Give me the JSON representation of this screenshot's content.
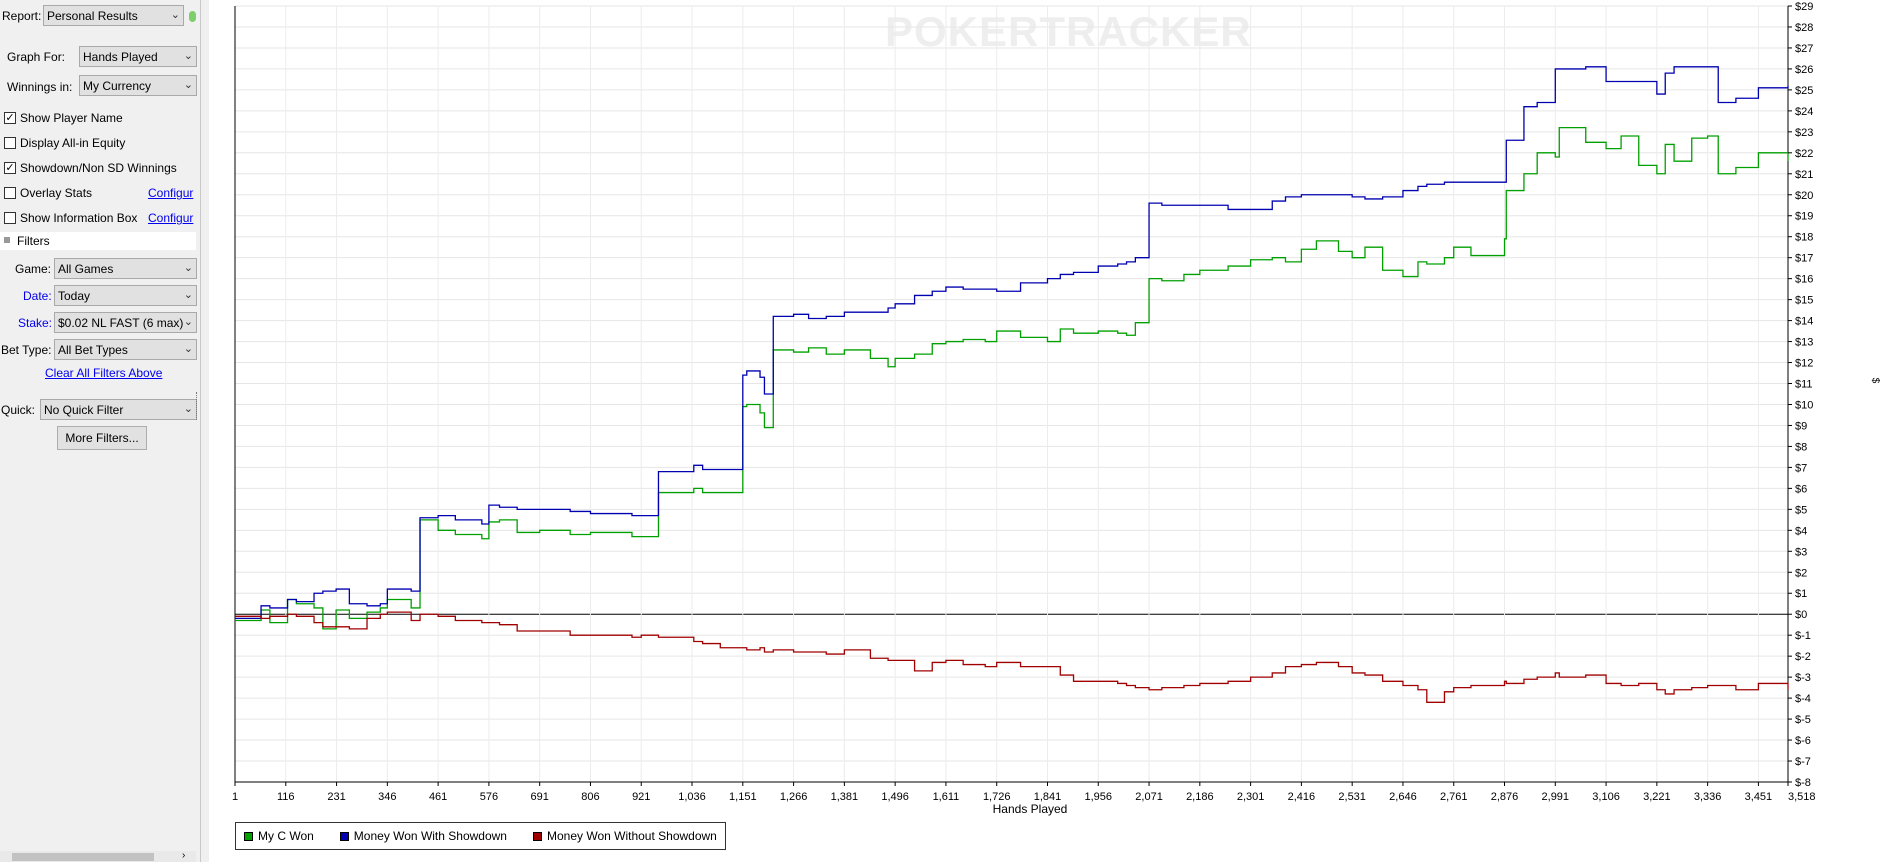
{
  "sidebar": {
    "report_label": "Report:",
    "report_value": "Personal Results",
    "graph_for_label": "Graph For:",
    "graph_for_value": "Hands Played",
    "winnings_label": "Winnings in:",
    "winnings_value": "My Currency",
    "checkboxes": [
      {
        "label": "Show Player Name",
        "checked": true
      },
      {
        "label": "Display All-in Equity",
        "checked": false
      },
      {
        "label": "Showdown/Non SD Winnings",
        "checked": true
      },
      {
        "label": "Overlay Stats",
        "checked": false
      },
      {
        "label": "Show Information Box",
        "checked": false
      }
    ],
    "configure_link": "Configur",
    "filters_header": "Filters",
    "game_label": "Game:",
    "game_value": "All Games",
    "date_label": "Date:",
    "date_value": "Today",
    "stake_label": "Stake:",
    "stake_value": "$0.02 NL FAST (6 max)",
    "bet_type_label": "Bet Type:",
    "bet_type_value": "All Bet Types",
    "clear_filters_link": "Clear All Filters Above",
    "quick_label": "Quick:",
    "quick_value": "No Quick Filter",
    "more_filters_button": "More Filters..."
  },
  "watermark": "POKERTRACKER",
  "axis_side_label": "$",
  "colors": {
    "green": "#00a000",
    "blue": "#0000b0",
    "red": "#a00000"
  },
  "chart_data": {
    "type": "line",
    "xlabel": "Hands Played",
    "ylabel": "$",
    "x_ticks": [
      "1",
      "116",
      "231",
      "346",
      "461",
      "576",
      "691",
      "806",
      "921",
      "1,036",
      "1,151",
      "1,266",
      "1,381",
      "1,496",
      "1,611",
      "1,726",
      "1,841",
      "1,956",
      "2,071",
      "2,186",
      "2,301",
      "2,416",
      "2,531",
      "2,646",
      "2,761",
      "2,876",
      "2,991",
      "3,106",
      "3,221",
      "3,336",
      "3,451",
      "3,518"
    ],
    "y_ticks": [
      "$29",
      "$28",
      "$27",
      "$26",
      "$25",
      "$24",
      "$23",
      "$22",
      "$21",
      "$20",
      "$19",
      "$18",
      "$17",
      "$16",
      "$15",
      "$14",
      "$13",
      "$12",
      "$11",
      "$10",
      "$9",
      "$8",
      "$7",
      "$6",
      "$5",
      "$4",
      "$3",
      "$2",
      "$1",
      "$0",
      "$-1",
      "$-2",
      "$-3",
      "$-4",
      "$-5",
      "$-6",
      "$-7",
      "$-8"
    ],
    "xlim": [
      1,
      3518
    ],
    "ylim": [
      -8,
      29
    ],
    "grid": true,
    "legend_position": "bottom-left",
    "series": [
      {
        "name": "My C Won",
        "color": "#00a000",
        "x": [
          1,
          60,
          80,
          120,
          140,
          180,
          200,
          230,
          260,
          300,
          330,
          346,
          400,
          420,
          461,
          500,
          560,
          576,
          600,
          640,
          691,
          760,
          806,
          900,
          921,
          960,
          1040,
          1060,
          1100,
          1151,
          1160,
          1190,
          1200,
          1220,
          1266,
          1300,
          1340,
          1381,
          1440,
          1480,
          1496,
          1540,
          1580,
          1611,
          1650,
          1700,
          1726,
          1780,
          1841,
          1870,
          1900,
          1956,
          2000,
          2020,
          2040,
          2071,
          2100,
          2150,
          2186,
          2250,
          2301,
          2350,
          2380,
          2416,
          2450,
          2500,
          2531,
          2560,
          2600,
          2646,
          2680,
          2700,
          2740,
          2761,
          2800,
          2876,
          2880,
          2920,
          2950,
          2991,
          3000,
          3060,
          3106,
          3140,
          3180,
          3221,
          3240,
          3260,
          3300,
          3336,
          3360,
          3400,
          3451,
          3518
        ],
        "y": [
          -0.3,
          0.2,
          -0.4,
          0.7,
          0.5,
          0.3,
          -0.7,
          0.2,
          -0.2,
          0.1,
          0.3,
          0.7,
          0.3,
          4.5,
          4.0,
          3.8,
          3.6,
          4.4,
          4.5,
          3.9,
          4.0,
          3.8,
          3.9,
          3.7,
          3.7,
          5.8,
          6.0,
          5.8,
          5.8,
          9.9,
          10.0,
          9.6,
          8.9,
          12.6,
          12.5,
          12.7,
          12.4,
          12.6,
          12.2,
          11.8,
          12.2,
          12.4,
          12.9,
          13.0,
          13.1,
          13.0,
          13.5,
          13.2,
          13.0,
          13.6,
          13.4,
          13.5,
          13.4,
          13.3,
          13.9,
          16.0,
          15.9,
          16.2,
          16.4,
          16.6,
          16.9,
          17.0,
          16.8,
          17.4,
          17.8,
          17.3,
          17.0,
          17.5,
          16.4,
          16.1,
          16.8,
          16.7,
          17.0,
          17.5,
          17.1,
          17.9,
          20.2,
          21.0,
          22.0,
          21.8,
          23.2,
          22.5,
          22.2,
          22.8,
          21.4,
          21.0,
          22.4,
          21.6,
          22.7,
          22.8,
          21.0,
          21.3,
          22.0,
          21.6
        ],
        "label": "My C Won"
      },
      {
        "name": "Money Won With Showdown",
        "color": "#0000b0",
        "x": [
          1,
          60,
          80,
          120,
          140,
          180,
          200,
          230,
          260,
          300,
          330,
          346,
          400,
          420,
          461,
          500,
          560,
          576,
          600,
          640,
          691,
          760,
          806,
          900,
          921,
          960,
          1040,
          1060,
          1100,
          1151,
          1160,
          1190,
          1200,
          1220,
          1266,
          1300,
          1340,
          1381,
          1440,
          1480,
          1496,
          1540,
          1580,
          1611,
          1650,
          1700,
          1726,
          1780,
          1841,
          1870,
          1900,
          1956,
          2000,
          2020,
          2040,
          2071,
          2100,
          2150,
          2186,
          2250,
          2301,
          2350,
          2380,
          2416,
          2450,
          2500,
          2531,
          2560,
          2600,
          2646,
          2680,
          2700,
          2740,
          2761,
          2800,
          2876,
          2880,
          2920,
          2950,
          2991,
          3000,
          3060,
          3106,
          3140,
          3180,
          3221,
          3240,
          3260,
          3300,
          3336,
          3360,
          3400,
          3451,
          3518
        ],
        "y": [
          -0.2,
          0.4,
          0.3,
          0.7,
          0.6,
          1.0,
          1.1,
          1.2,
          0.5,
          0.4,
          0.5,
          1.2,
          1.1,
          4.6,
          4.7,
          4.5,
          4.3,
          5.2,
          5.1,
          5.0,
          5.0,
          4.9,
          4.8,
          4.7,
          4.7,
          6.8,
          7.1,
          6.9,
          6.9,
          11.4,
          11.6,
          11.3,
          10.5,
          14.2,
          14.3,
          14.1,
          14.2,
          14.4,
          14.4,
          14.6,
          14.8,
          15.2,
          15.4,
          15.6,
          15.5,
          15.5,
          15.4,
          15.8,
          16.0,
          16.2,
          16.3,
          16.6,
          16.7,
          16.8,
          17.0,
          19.6,
          19.5,
          19.5,
          19.5,
          19.3,
          19.3,
          19.7,
          19.9,
          20.0,
          20.0,
          20.0,
          19.9,
          19.8,
          19.9,
          20.2,
          20.4,
          20.5,
          20.6,
          20.6,
          20.6,
          20.6,
          22.6,
          24.2,
          24.4,
          26.0,
          26.0,
          26.1,
          25.4,
          25.4,
          25.4,
          24.8,
          25.8,
          26.1,
          26.1,
          26.1,
          24.4,
          24.6,
          25.1,
          25.2
        ],
        "label": "Money Won With Showdown"
      },
      {
        "name": "Money Won Without Showdown",
        "color": "#a00000",
        "x": [
          1,
          60,
          80,
          120,
          140,
          180,
          200,
          230,
          260,
          300,
          330,
          346,
          400,
          420,
          461,
          500,
          560,
          576,
          600,
          640,
          691,
          760,
          806,
          900,
          921,
          960,
          1040,
          1060,
          1100,
          1151,
          1160,
          1190,
          1200,
          1220,
          1266,
          1300,
          1340,
          1381,
          1440,
          1480,
          1496,
          1540,
          1580,
          1611,
          1650,
          1700,
          1726,
          1780,
          1841,
          1870,
          1900,
          1956,
          2000,
          2020,
          2040,
          2071,
          2100,
          2150,
          2186,
          2250,
          2301,
          2350,
          2380,
          2416,
          2450,
          2500,
          2531,
          2560,
          2600,
          2646,
          2680,
          2700,
          2740,
          2761,
          2800,
          2876,
          2880,
          2920,
          2950,
          2991,
          3000,
          3060,
          3106,
          3140,
          3180,
          3221,
          3240,
          3260,
          3300,
          3336,
          3360,
          3400,
          3451,
          3518
        ],
        "y": [
          -0.1,
          -0.2,
          -0.1,
          0.0,
          -0.1,
          -0.4,
          -0.6,
          -0.6,
          -0.7,
          -0.2,
          0.0,
          0.1,
          -0.3,
          0.0,
          -0.1,
          -0.3,
          -0.4,
          -0.4,
          -0.5,
          -0.8,
          -0.8,
          -1.0,
          -1.0,
          -1.1,
          -1.0,
          -1.1,
          -1.3,
          -1.4,
          -1.6,
          -1.6,
          -1.7,
          -1.6,
          -1.8,
          -1.7,
          -1.8,
          -1.8,
          -1.9,
          -1.7,
          -2.1,
          -2.2,
          -2.2,
          -2.7,
          -2.3,
          -2.2,
          -2.4,
          -2.5,
          -2.3,
          -2.5,
          -2.5,
          -2.9,
          -3.2,
          -3.2,
          -3.3,
          -3.4,
          -3.5,
          -3.6,
          -3.5,
          -3.4,
          -3.3,
          -3.2,
          -3.0,
          -2.8,
          -2.5,
          -2.4,
          -2.3,
          -2.5,
          -2.8,
          -2.9,
          -3.2,
          -3.4,
          -3.6,
          -4.2,
          -3.7,
          -3.5,
          -3.4,
          -3.2,
          -3.3,
          -3.1,
          -3.0,
          -2.8,
          -3.0,
          -2.9,
          -3.3,
          -3.4,
          -3.3,
          -3.6,
          -3.8,
          -3.6,
          -3.5,
          -3.4,
          -3.4,
          -3.6,
          -3.3,
          -3.6
        ],
        "label": "Money Won Without Showdown"
      }
    ]
  }
}
